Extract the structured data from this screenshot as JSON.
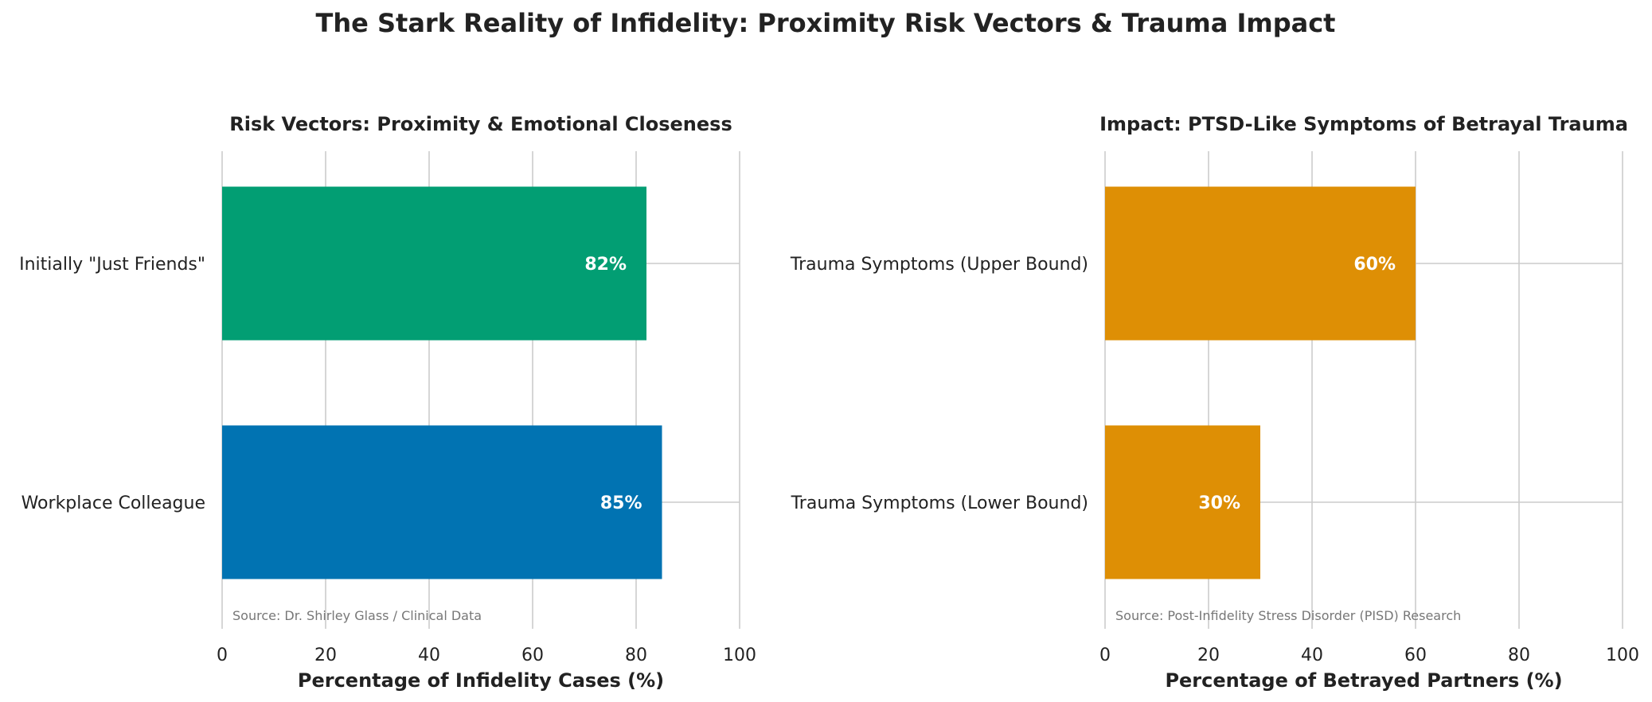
{
  "figure_title": "The Stark Reality of Infidelity: Proximity Risk Vectors & Trauma Impact",
  "chart_data": [
    {
      "type": "bar",
      "orientation": "horizontal",
      "title": "Risk Vectors: Proximity & Emotional Closeness",
      "xlabel": "Percentage of Infidelity Cases (%)",
      "ylabel": "",
      "xlim": [
        0,
        100
      ],
      "xticks": [
        0,
        20,
        40,
        60,
        80,
        100
      ],
      "grid": true,
      "categories": [
        "Initially \"Just Friends\"",
        "Workplace Colleague"
      ],
      "values": [
        82,
        85
      ],
      "value_labels": [
        "82%",
        "85%"
      ],
      "colors": [
        "#029E73",
        "#0173B2"
      ],
      "annotation": "Source: Dr. Shirley Glass / Clinical Data"
    },
    {
      "type": "bar",
      "orientation": "horizontal",
      "title": "Impact: PTSD-Like Symptoms of Betrayal Trauma",
      "xlabel": "Percentage of Betrayed Partners (%)",
      "ylabel": "",
      "xlim": [
        0,
        100
      ],
      "xticks": [
        0,
        20,
        40,
        60,
        80,
        100
      ],
      "grid": true,
      "categories": [
        "Trauma Symptoms (Upper Bound)",
        "Trauma Symptoms (Lower Bound)"
      ],
      "values": [
        60,
        30
      ],
      "value_labels": [
        "60%",
        "30%"
      ],
      "colors": [
        "#DE8F05",
        "#DE8F05"
      ],
      "annotation": "Source: Post-Infidelity Stress Disorder (PISD) Research"
    }
  ]
}
